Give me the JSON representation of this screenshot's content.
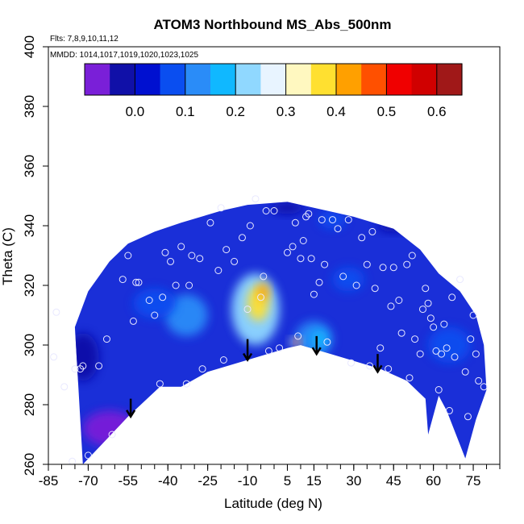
{
  "chart_data": {
    "type": "heatmap",
    "title": "ATOM3 Northbound MS_Abs_500nm",
    "annotations": [
      "Flts: 7,8,9,10,11,12",
      "MMDD: 1014,1017,1019,1020,1023,1025"
    ],
    "xlabel": "Latitude (deg N)",
    "ylabel": "Theta (C)",
    "xlim": [
      -85,
      85
    ],
    "ylim": [
      260,
      400
    ],
    "x_ticks": [
      -85,
      -70,
      -55,
      -40,
      -25,
      -10,
      5,
      15,
      30,
      45,
      60,
      75
    ],
    "y_ticks": [
      260,
      280,
      300,
      320,
      340,
      360,
      380,
      400
    ],
    "colorbar": {
      "range": [
        -0.1,
        0.65
      ],
      "ticks": [
        0.0,
        0.1,
        0.2,
        0.3,
        0.4,
        0.5,
        0.6
      ],
      "tick_labels": [
        "0.0",
        "0.1",
        "0.2",
        "0.3",
        "0.4",
        "0.5",
        "0.6"
      ],
      "colors": [
        "#7a1fd8",
        "#1010a8",
        "#0010d0",
        "#0a4ef0",
        "#2a8cf8",
        "#10b8ff",
        "#90d8ff",
        "#e8f4ff",
        "#fff8c0",
        "#ffe030",
        "#ffa000",
        "#ff5000",
        "#f00000",
        "#d00000",
        "#a01818"
      ]
    },
    "field": {
      "background_color": "#1a2fd8",
      "bottom_boundary": [
        [
          -72,
          260
        ],
        [
          -55,
          276
        ],
        [
          -43,
          286
        ],
        [
          -35,
          286
        ],
        [
          -25,
          291
        ],
        [
          -10,
          295
        ],
        [
          5,
          299
        ],
        [
          10,
          300
        ],
        [
          25,
          296
        ],
        [
          40,
          292
        ],
        [
          50,
          288
        ],
        [
          57,
          282
        ],
        [
          58,
          270
        ],
        [
          62,
          283
        ],
        [
          65,
          278
        ],
        [
          72,
          262
        ]
      ],
      "top_boundary": [
        [
          -75,
          306
        ],
        [
          -70,
          318
        ],
        [
          -62,
          328
        ],
        [
          -55,
          334
        ],
        [
          -45,
          338
        ],
        [
          -35,
          341
        ],
        [
          -20,
          345
        ],
        [
          -10,
          347
        ],
        [
          5,
          348
        ],
        [
          15,
          346
        ],
        [
          30,
          343
        ],
        [
          45,
          339
        ],
        [
          55,
          332
        ],
        [
          62,
          324
        ],
        [
          70,
          318
        ],
        [
          76,
          310
        ],
        [
          79,
          300
        ],
        [
          80,
          285
        ],
        [
          76,
          275
        ],
        [
          72,
          262
        ]
      ],
      "features": [
        {
          "center": [
            -7,
            312
          ],
          "radii": [
            9,
            12
          ],
          "value": 0.22
        },
        {
          "center": [
            -6,
            314
          ],
          "radii": [
            4,
            6
          ],
          "value": 0.38
        },
        {
          "center": [
            -4,
            318
          ],
          "radii": [
            2,
            3
          ],
          "value": 0.42
        },
        {
          "center": [
            -33,
            310
          ],
          "radii": [
            8,
            7
          ],
          "value": 0.12
        },
        {
          "center": [
            15,
            302
          ],
          "radii": [
            7,
            6
          ],
          "value": 0.12
        },
        {
          "center": [
            17,
            302
          ],
          "radii": [
            3,
            3
          ],
          "value": 0.19
        },
        {
          "center": [
            8,
            301
          ],
          "radii": [
            2,
            1.2
          ],
          "value": 0.35
        },
        {
          "center": [
            9,
            301
          ],
          "radii": [
            1,
            1
          ],
          "value": 0.55
        },
        {
          "center": [
            -45,
            314
          ],
          "radii": [
            8,
            5
          ],
          "value": 0.08
        },
        {
          "center": [
            22,
            342
          ],
          "radii": [
            5,
            3
          ],
          "value": 0.08
        },
        {
          "center": [
            -62,
            272
          ],
          "radii": [
            10,
            6
          ],
          "value": -0.08
        },
        {
          "center": [
            -72,
            296
          ],
          "radii": [
            6,
            8
          ],
          "value": -0.05
        },
        {
          "center": [
            5,
            346
          ],
          "radii": [
            6,
            2
          ],
          "value": -0.05
        },
        {
          "center": [
            45,
            340
          ],
          "radii": [
            6,
            2
          ],
          "value": -0.05
        },
        {
          "center": [
            66,
            300
          ],
          "radii": [
            8,
            6
          ],
          "value": 0.08
        },
        {
          "center": [
            28,
            322
          ],
          "radii": [
            6,
            4
          ],
          "value": 0.06
        }
      ]
    },
    "arrows": [
      {
        "x": -54,
        "y_from": 282,
        "y_to": 276
      },
      {
        "x": -10,
        "y_from": 302,
        "y_to": 295
      },
      {
        "x": 16,
        "y_from": 303,
        "y_to": 297
      },
      {
        "x": 39,
        "y_from": 297,
        "y_to": 291
      }
    ],
    "observations": [
      [
        -83,
        296
      ],
      [
        -82,
        311
      ],
      [
        -79,
        286
      ],
      [
        -76,
        261
      ],
      [
        -75,
        292
      ],
      [
        -73,
        292
      ],
      [
        -72,
        293
      ],
      [
        -70,
        263
      ],
      [
        -66,
        293
      ],
      [
        -63,
        302
      ],
      [
        -61,
        270
      ],
      [
        -57,
        322
      ],
      [
        -55,
        330
      ],
      [
        -53,
        308
      ],
      [
        -52,
        321
      ],
      [
        -51,
        321
      ],
      [
        -47,
        315
      ],
      [
        -45,
        310
      ],
      [
        -43,
        287
      ],
      [
        -42,
        316
      ],
      [
        -41,
        331
      ],
      [
        -39,
        328
      ],
      [
        -37,
        320
      ],
      [
        -35,
        333
      ],
      [
        -33,
        287
      ],
      [
        -32,
        320
      ],
      [
        -31,
        330
      ],
      [
        -28,
        329
      ],
      [
        -27,
        292
      ],
      [
        -24,
        341
      ],
      [
        -21,
        325
      ],
      [
        -20,
        346
      ],
      [
        -19,
        295
      ],
      [
        -18,
        332
      ],
      [
        -15,
        328
      ],
      [
        -12,
        336
      ],
      [
        -10,
        312
      ],
      [
        -9,
        340
      ],
      [
        -7,
        349
      ],
      [
        -5,
        316
      ],
      [
        -4,
        323
      ],
      [
        -3,
        345
      ],
      [
        -2,
        298
      ],
      [
        0,
        345
      ],
      [
        2,
        299
      ],
      [
        5,
        331
      ],
      [
        7,
        333
      ],
      [
        8,
        341
      ],
      [
        9,
        303
      ],
      [
        10,
        329
      ],
      [
        11,
        335
      ],
      [
        12,
        343
      ],
      [
        13,
        344
      ],
      [
        14,
        329
      ],
      [
        15,
        317
      ],
      [
        17,
        321
      ],
      [
        18,
        342
      ],
      [
        19,
        327
      ],
      [
        20,
        301
      ],
      [
        22,
        342
      ],
      [
        24,
        339
      ],
      [
        26,
        323
      ],
      [
        28,
        342
      ],
      [
        29,
        294
      ],
      [
        31,
        320
      ],
      [
        33,
        336
      ],
      [
        35,
        327
      ],
      [
        36,
        293
      ],
      [
        37,
        338
      ],
      [
        38,
        319
      ],
      [
        40,
        299
      ],
      [
        41,
        326
      ],
      [
        43,
        292
      ],
      [
        44,
        313
      ],
      [
        45,
        326
      ],
      [
        47,
        315
      ],
      [
        48,
        304
      ],
      [
        50,
        327
      ],
      [
        51,
        289
      ],
      [
        52,
        330
      ],
      [
        53,
        302
      ],
      [
        55,
        297
      ],
      [
        56,
        312
      ],
      [
        57,
        319
      ],
      [
        58,
        314
      ],
      [
        59,
        309
      ],
      [
        60,
        306
      ],
      [
        61,
        298
      ],
      [
        62,
        285
      ],
      [
        63,
        297
      ],
      [
        64,
        307
      ],
      [
        65,
        299
      ],
      [
        66,
        278
      ],
      [
        67,
        316
      ],
      [
        68,
        296
      ],
      [
        70,
        322
      ],
      [
        72,
        291
      ],
      [
        73,
        276
      ],
      [
        74,
        302
      ],
      [
        75,
        310
      ],
      [
        76,
        297
      ],
      [
        77,
        288
      ],
      [
        79,
        286
      ]
    ]
  }
}
